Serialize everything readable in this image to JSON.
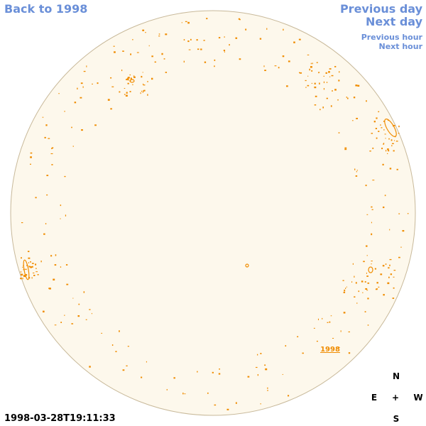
{
  "links": {
    "back": "Back to 1998",
    "previous_day": "Previous day",
    "next_day": "Next day",
    "previous_hour": "Previous hour",
    "next_hour": "Next hour"
  },
  "disk_label": "1998",
  "timestamp": "1998-03-28T19:11:33",
  "compass": {
    "north": "N",
    "east": "E",
    "center": "+",
    "west": "W",
    "south": "S"
  }
}
